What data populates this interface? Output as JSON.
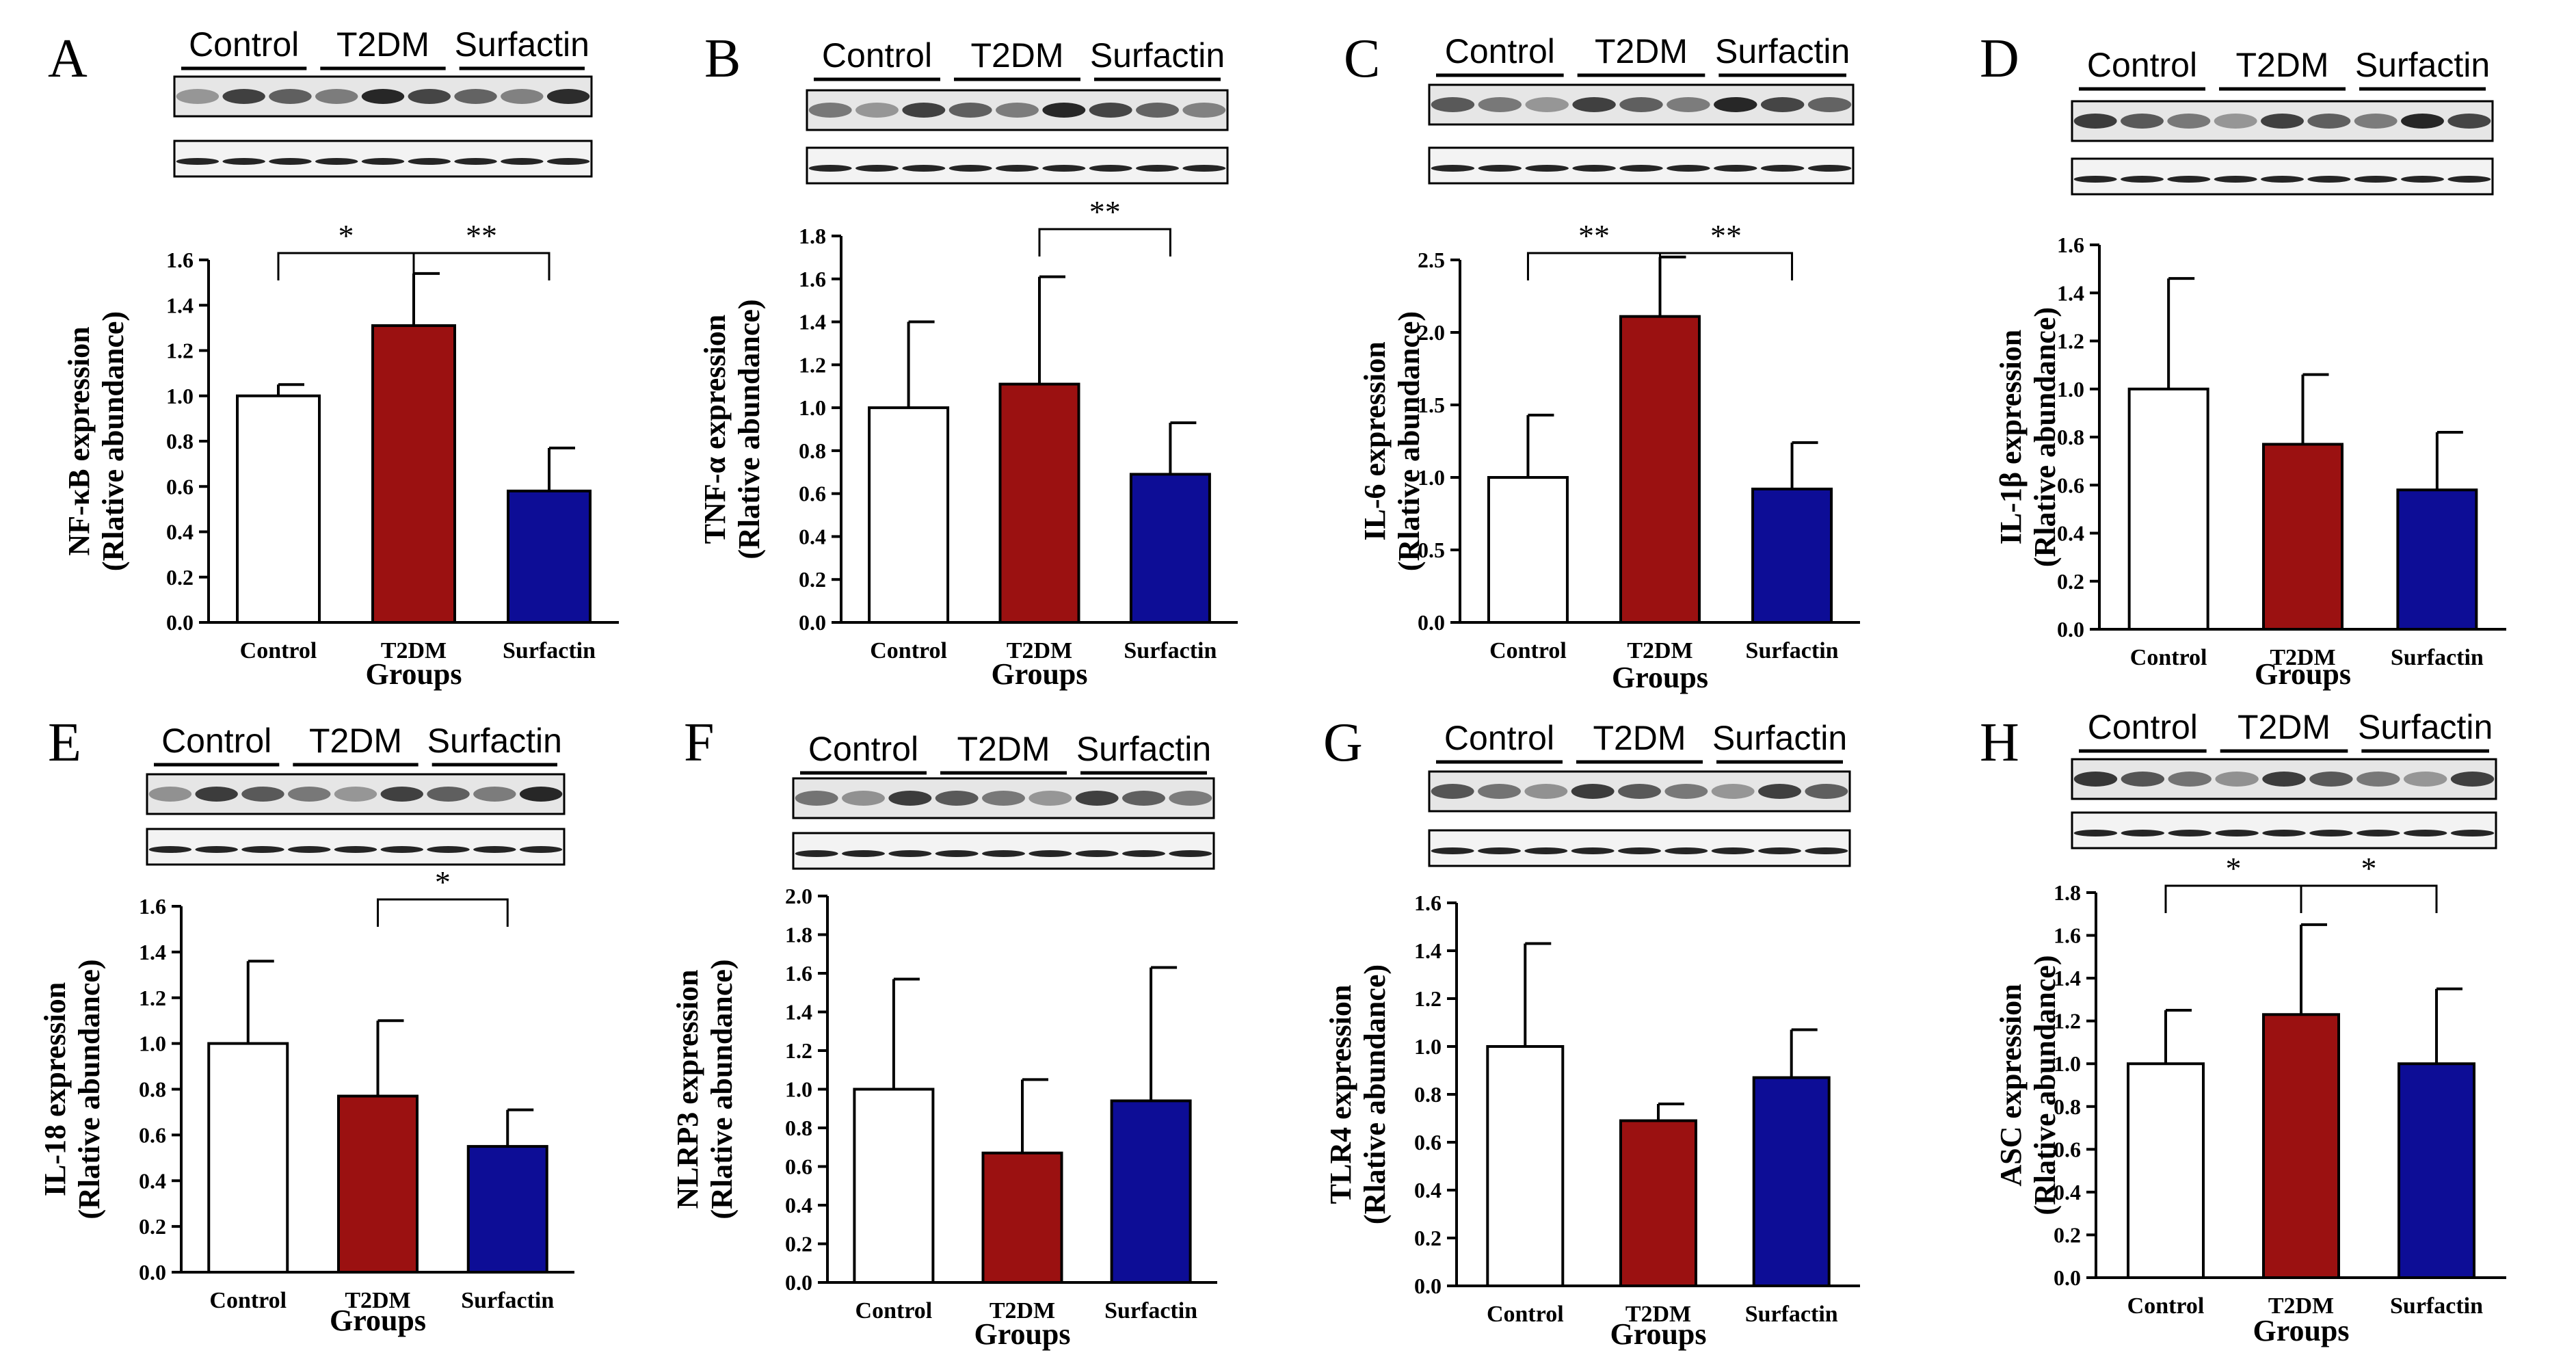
{
  "colors": {
    "control": "#ffffff",
    "t2dm": "#9b1111",
    "surfactin": "#0d0d96",
    "stroke": "#000000"
  },
  "blot_labels": [
    "Control",
    "T2DM",
    "Surfactin"
  ],
  "chart_data": [
    {
      "panel": "A",
      "type": "bar",
      "ylabel": [
        "NF-κB expression",
        "(Rlative abundance)"
      ],
      "xlabel": "Groups",
      "categories": [
        "Control",
        "T2DM",
        "Surfactin"
      ],
      "values": [
        1.0,
        1.31,
        0.58
      ],
      "errors": [
        0.05,
        0.23,
        0.19
      ],
      "ylim": [
        0,
        1.6
      ],
      "yticks": [
        "0.0",
        "0.2",
        "0.4",
        "0.6",
        "0.8",
        "1.0",
        "1.2",
        "1.4",
        "1.6"
      ],
      "significance": [
        {
          "from": 0,
          "to": 1,
          "label": "*"
        },
        {
          "from": 1,
          "to": 2,
          "label": "**"
        }
      ]
    },
    {
      "panel": "B",
      "type": "bar",
      "ylabel": [
        "TNF-α expression",
        "(Rlative abundance)"
      ],
      "xlabel": "Groups",
      "categories": [
        "Control",
        "T2DM",
        "Surfactin"
      ],
      "values": [
        1.0,
        1.11,
        0.69
      ],
      "errors": [
        0.4,
        0.5,
        0.24
      ],
      "ylim": [
        0,
        1.8
      ],
      "yticks": [
        "0.0",
        "0.2",
        "0.4",
        "0.6",
        "0.8",
        "1.0",
        "1.2",
        "1.4",
        "1.6",
        "1.8"
      ],
      "significance": [
        {
          "from": 1,
          "to": 2,
          "label": "**"
        }
      ]
    },
    {
      "panel": "C",
      "type": "bar",
      "ylabel": [
        "IL-6 expression",
        "(Rlative abundance)"
      ],
      "xlabel": "Groups",
      "categories": [
        "Control",
        "T2DM",
        "Surfactin"
      ],
      "values": [
        1.0,
        2.11,
        0.92
      ],
      "errors": [
        0.43,
        0.41,
        0.32
      ],
      "ylim": [
        0,
        2.5
      ],
      "yticks": [
        "0.0",
        "0.5",
        "1.0",
        "1.5",
        "2.0",
        "2.5"
      ],
      "significance": [
        {
          "from": 0,
          "to": 1,
          "label": "**"
        },
        {
          "from": 1,
          "to": 2,
          "label": "**"
        }
      ]
    },
    {
      "panel": "D",
      "type": "bar",
      "ylabel": [
        "IL-1β expression",
        "(Rlative abundance)"
      ],
      "xlabel": "Groups",
      "categories": [
        "Control",
        "T2DM",
        "Surfactin"
      ],
      "values": [
        1.0,
        0.77,
        0.58
      ],
      "errors": [
        0.46,
        0.29,
        0.24
      ],
      "ylim": [
        0,
        1.6
      ],
      "yticks": [
        "0.0",
        "0.2",
        "0.4",
        "0.6",
        "0.8",
        "1.0",
        "1.2",
        "1.4",
        "1.6"
      ],
      "significance": []
    },
    {
      "panel": "E",
      "type": "bar",
      "ylabel": [
        "IL-18 expression",
        "(Rlative abundance)"
      ],
      "xlabel": "Groups",
      "categories": [
        "Control",
        "T2DM",
        "Surfactin"
      ],
      "values": [
        1.0,
        0.77,
        0.55
      ],
      "errors": [
        0.36,
        0.33,
        0.16
      ],
      "ylim": [
        0,
        1.6
      ],
      "yticks": [
        "0.0",
        "0.2",
        "0.4",
        "0.6",
        "0.8",
        "1.0",
        "1.2",
        "1.4",
        "1.6"
      ],
      "significance": [
        {
          "from": 1,
          "to": 2,
          "label": "*"
        }
      ]
    },
    {
      "panel": "F",
      "type": "bar",
      "ylabel": [
        "NLRP3 expression",
        "(Rlative abundance)"
      ],
      "xlabel": "Groups",
      "categories": [
        "Control",
        "T2DM",
        "Surfactin"
      ],
      "values": [
        1.0,
        0.67,
        0.94
      ],
      "errors": [
        0.57,
        0.38,
        0.69
      ],
      "ylim": [
        0,
        2.0
      ],
      "yticks": [
        "0.0",
        "0.2",
        "0.4",
        "0.6",
        "0.8",
        "1.0",
        "1.2",
        "1.4",
        "1.6",
        "1.8",
        "2.0"
      ],
      "significance": []
    },
    {
      "panel": "G",
      "type": "bar",
      "ylabel": [
        "TLR4 expression",
        "(Rlative abundance)"
      ],
      "xlabel": "Groups",
      "categories": [
        "Control",
        "T2DM",
        "Surfactin"
      ],
      "values": [
        1.0,
        0.69,
        0.87
      ],
      "errors": [
        0.43,
        0.07,
        0.2
      ],
      "ylim": [
        0,
        1.6
      ],
      "yticks": [
        "0.0",
        "0.2",
        "0.4",
        "0.6",
        "0.8",
        "1.0",
        "1.2",
        "1.4",
        "1.6"
      ],
      "significance": []
    },
    {
      "panel": "H",
      "type": "bar",
      "ylabel": [
        "ASC expression",
        "(Rlative abundance)"
      ],
      "xlabel": "Groups",
      "categories": [
        "Control",
        "T2DM",
        "Surfactin"
      ],
      "values": [
        1.0,
        1.23,
        1.0
      ],
      "errors": [
        0.25,
        0.42,
        0.35
      ],
      "ylim": [
        0,
        1.8
      ],
      "yticks": [
        "0.0",
        "0.2",
        "0.4",
        "0.6",
        "0.8",
        "1.0",
        "1.2",
        "1.4",
        "1.6",
        "1.8"
      ],
      "significance": [
        {
          "from": 0,
          "to": 1,
          "label": "*"
        },
        {
          "from": 1,
          "to": 2,
          "label": "*"
        }
      ]
    }
  ]
}
